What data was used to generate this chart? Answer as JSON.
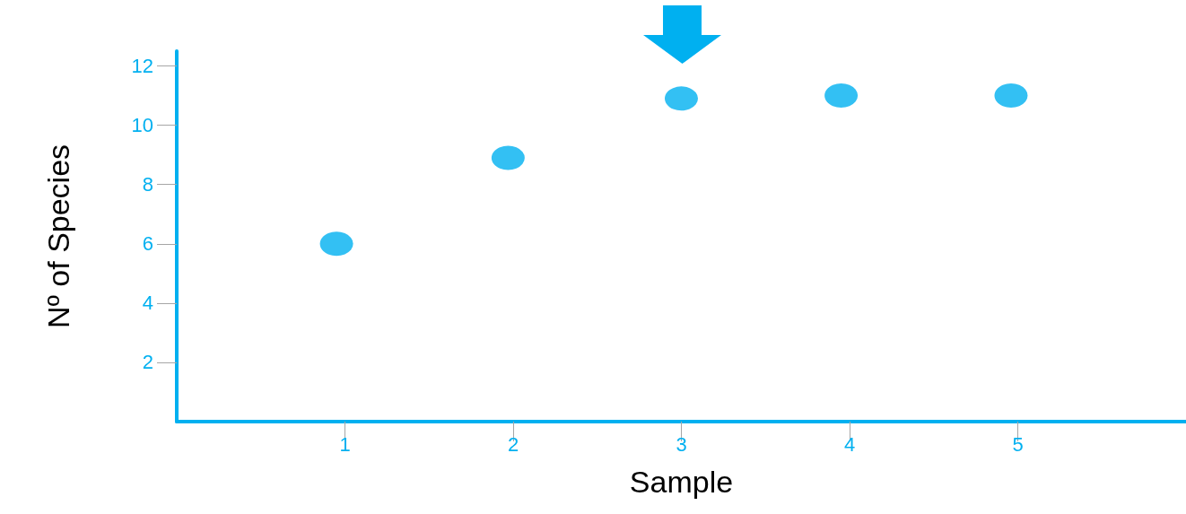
{
  "chart_data": {
    "type": "scatter",
    "xlabel": "Sample",
    "ylabel": "Nº of Species",
    "x": [
      0.95,
      1.97,
      3,
      3.95,
      4.96
    ],
    "values": [
      6,
      8.9,
      10.9,
      11,
      11
    ],
    "color": "#00b0f0",
    "marker": "circle",
    "grid": false,
    "xlim": [
      0,
      6
    ],
    "xticks": [
      1,
      2,
      3,
      4,
      5
    ],
    "ylim": [
      0,
      12.5
    ],
    "yticks": [
      2,
      4,
      6,
      8,
      10,
      12
    ]
  }
}
